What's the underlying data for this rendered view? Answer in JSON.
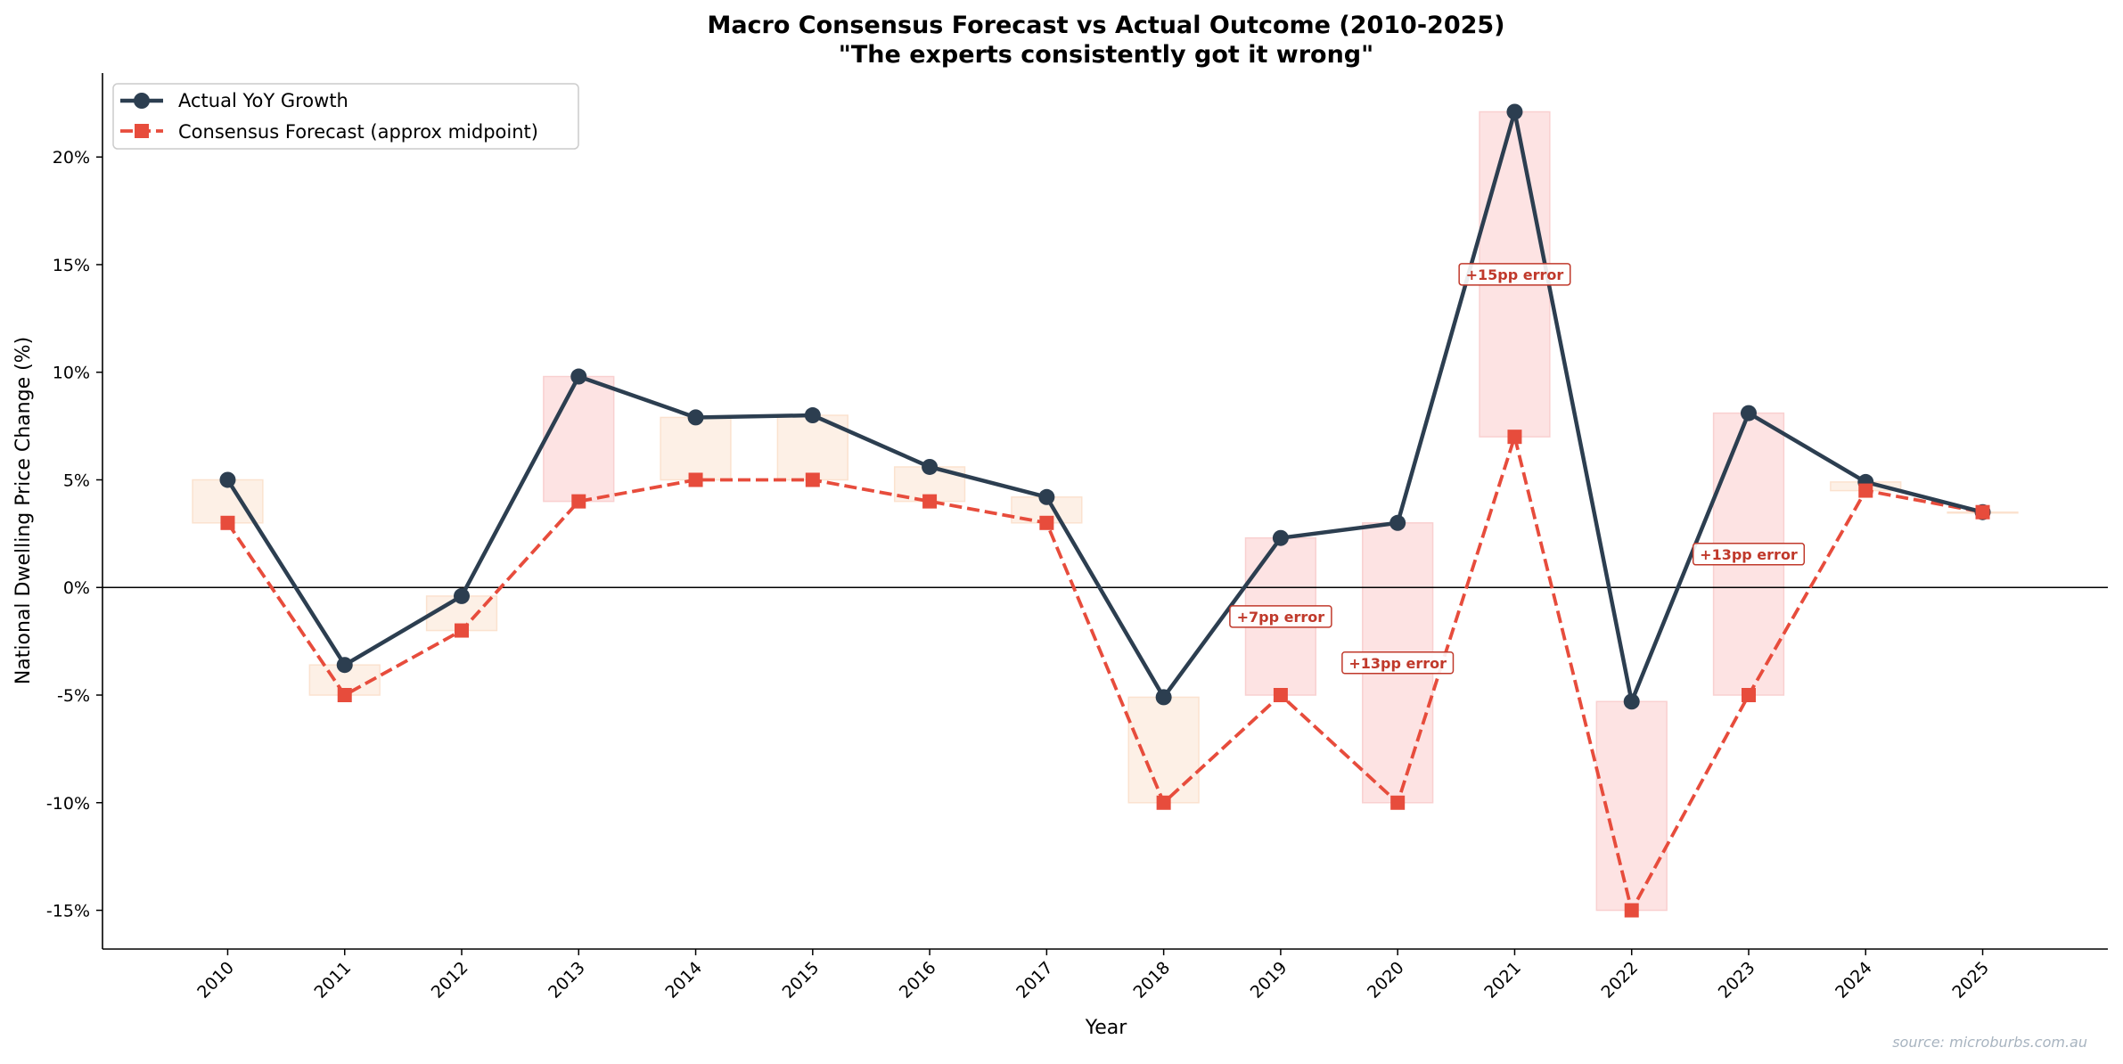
{
  "chart_data": {
    "type": "line",
    "title": "Macro Consensus Forecast vs Actual Outcome (2010-2025)",
    "subtitle": "\"The experts consistently got it wrong\"",
    "xlabel": "Year",
    "ylabel": "National Dwelling Price Change (%)",
    "source": "source: microburbs.com.au",
    "x": [
      2010,
      2011,
      2012,
      2013,
      2014,
      2015,
      2016,
      2017,
      2018,
      2019,
      2020,
      2021,
      2022,
      2023,
      2024,
      2025
    ],
    "x_tick_labels": [
      "2010",
      "2011",
      "2012",
      "2013",
      "2014",
      "2015",
      "2016",
      "2017",
      "2018",
      "2019",
      "2020",
      "2021",
      "2022",
      "2023",
      "2024",
      "2025"
    ],
    "y_ticks": [
      -15,
      -10,
      -5,
      0,
      5,
      10,
      15,
      20
    ],
    "y_tick_labels": [
      "-15%",
      "-10%",
      "-5%",
      "0%",
      "5%",
      "10%",
      "15%",
      "20%"
    ],
    "xlim": [
      2008.93,
      2026.07
    ],
    "ylim": [
      -16.8,
      23.9
    ],
    "grid": false,
    "legend_position": "top-left",
    "series": [
      {
        "name": "Actual YoY Growth",
        "color": "#2c3e50",
        "style": "solid",
        "marker": "circle",
        "values": [
          5.0,
          -3.6,
          -0.4,
          9.8,
          7.9,
          8.0,
          5.6,
          4.2,
          -5.1,
          2.3,
          3.0,
          22.1,
          -5.3,
          8.1,
          4.9,
          3.5
        ]
      },
      {
        "name": "Consensus Forecast (approx midpoint)",
        "color": "#e74c3c",
        "style": "dashed",
        "marker": "square",
        "values": [
          3.0,
          -5.0,
          -2.0,
          4.0,
          5.0,
          5.0,
          4.0,
          3.0,
          -10.0,
          -5.0,
          -10.0,
          7.0,
          -15.0,
          -5.0,
          4.5,
          3.5
        ]
      }
    ],
    "error_band_colors": {
      "large": "#fde3e3",
      "small": "#fdf0e6"
    },
    "annotations": [
      {
        "x": 2019,
        "y": -1.35,
        "text": "+7pp error"
      },
      {
        "x": 2020,
        "y": -3.5,
        "text": "+13pp error"
      },
      {
        "x": 2021,
        "y": 14.55,
        "text": "+15pp error"
      },
      {
        "x": 2023,
        "y": 1.55,
        "text": "+13pp error"
      }
    ]
  }
}
